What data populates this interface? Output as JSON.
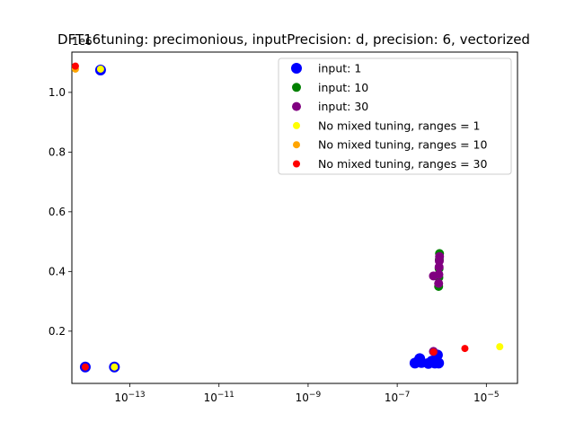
{
  "chart_data": {
    "type": "scatter",
    "title": "DFT16tuning: precimonious, inputPrecision: d, precision: 6, vectorized",
    "xlabel": "",
    "ylabel": "",
    "xscale": "log",
    "xlim": [
      5e-15,
      5e-05
    ],
    "ylim": [
      25000,
      1135000
    ],
    "y_offset_label": "1e6",
    "x_ticks": [
      1e-13,
      1e-11,
      1e-09,
      1e-07,
      1e-05
    ],
    "x_tick_labels": [
      {
        "base": "10",
        "exp": "−13"
      },
      {
        "base": "10",
        "exp": "−11"
      },
      {
        "base": "10",
        "exp": "−9"
      },
      {
        "base": "10",
        "exp": "−7"
      },
      {
        "base": "10",
        "exp": "−5"
      }
    ],
    "y_ticks": [
      200000,
      400000,
      600000,
      800000,
      1000000
    ],
    "y_tick_labels": [
      "0.2",
      "0.4",
      "0.6",
      "0.8",
      "1.0"
    ],
    "grid": false,
    "legend_position": "upper-right",
    "series": [
      {
        "name": "input: 1",
        "color": "#0000ff",
        "size": "large",
        "points": [
          [
            2.2e-14,
            1075000
          ],
          [
            1e-14,
            80000
          ],
          [
            4.5e-14,
            80000
          ],
          [
            2.5e-07,
            93000
          ],
          [
            3e-07,
            100000
          ],
          [
            3.2e-07,
            108000
          ],
          [
            3.5e-07,
            95000
          ],
          [
            5e-07,
            92000
          ],
          [
            6e-07,
            100000
          ],
          [
            7e-07,
            93000
          ],
          [
            8e-07,
            120000
          ],
          [
            8.5e-07,
            93000
          ]
        ]
      },
      {
        "name": "input: 10",
        "color": "#008000",
        "size": "medium",
        "points": [
          [
            8.5e-07,
            350000
          ],
          [
            8.6e-07,
            380000
          ],
          [
            8.7e-07,
            410000
          ],
          [
            8.8e-07,
            440000
          ],
          [
            8.9e-07,
            460000
          ]
        ]
      },
      {
        "name": "input: 30",
        "color": "#800080",
        "size": "medium",
        "points": [
          [
            6.5e-07,
            132000
          ],
          [
            6.5e-07,
            385000
          ],
          [
            8.5e-07,
            360000
          ],
          [
            8.6e-07,
            390000
          ],
          [
            8.7e-07,
            415000
          ],
          [
            8.8e-07,
            435000
          ],
          [
            8.9e-07,
            450000
          ]
        ]
      },
      {
        "name": "No mixed tuning, ranges = 1",
        "color": "#ffff00",
        "size": "small",
        "points": [
          [
            2.2e-14,
            1078000
          ],
          [
            4.5e-14,
            80000
          ],
          [
            2e-05,
            148000
          ]
        ]
      },
      {
        "name": "No mixed tuning, ranges = 10",
        "color": "#ffa500",
        "size": "small",
        "points": [
          [
            6e-15,
            1078000
          ]
        ]
      },
      {
        "name": "No mixed tuning, ranges = 30",
        "color": "#ff0000",
        "size": "small",
        "points": [
          [
            6e-15,
            1088000
          ],
          [
            1e-14,
            80000
          ],
          [
            3.3e-06,
            142000
          ],
          [
            6.5e-07,
            130000
          ]
        ]
      }
    ]
  }
}
